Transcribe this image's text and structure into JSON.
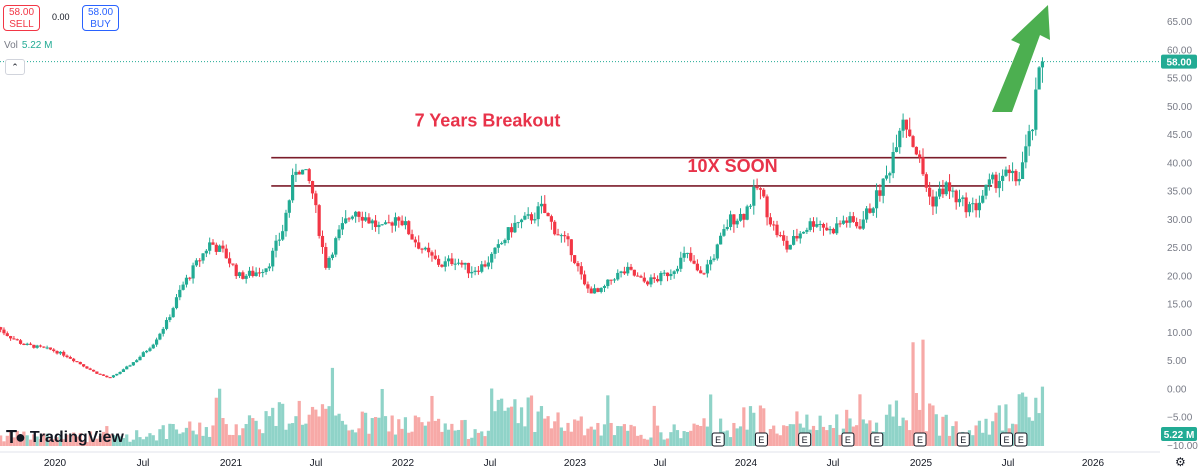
{
  "trade": {
    "sell_price": "58.00",
    "sell_label": "SELL",
    "spread": "0.00",
    "buy_price": "58.00",
    "buy_label": "BUY"
  },
  "volume_legend": {
    "label": "Vol",
    "value": "5.22 M"
  },
  "logo_text": "TradingView",
  "colors": {
    "up": "#22ab94",
    "down": "#f23645",
    "up_volume": "#8fd3c8",
    "down_volume": "#f7a9a7",
    "annotation": "#e8334a",
    "level_line": "#7b1c2a",
    "arrow": "#4caf50"
  },
  "chart_data": {
    "type": "candlestick",
    "yaxis": {
      "min": -10,
      "max": 65,
      "ticks": [
        65,
        60,
        55,
        50,
        45,
        40,
        35,
        30,
        25,
        20,
        15,
        10,
        5,
        0,
        -5,
        -10
      ]
    },
    "xaxis": {
      "labels": [
        "2020",
        "Jul",
        "2021",
        "Jul",
        "2022",
        "Jul",
        "2023",
        "Jul",
        "2024",
        "Jul",
        "2025",
        "Jul",
        "2026"
      ]
    },
    "last_price": 58.0,
    "last_price_label": "58.00",
    "volume_label": "5.22 M",
    "annotations": [
      {
        "text": "7 Years Breakout",
        "x": "2022-07",
        "y": 46.5
      },
      {
        "text": "10X SOON",
        "x": "2023-12",
        "y": 38.5
      }
    ],
    "levels": [
      {
        "value": 41.0,
        "from": "2021-04",
        "to": "2025-07"
      },
      {
        "value": 36.0,
        "from": "2021-04",
        "to": "2025-06"
      }
    ],
    "earnings_markers": {
      "label": "E",
      "dates": [
        "2023-11",
        "2024-02",
        "2024-05",
        "2024-08",
        "2024-10",
        "2025-01",
        "2025-04",
        "2025-07",
        "2025-08"
      ]
    },
    "price_path": [
      [
        "2019-09",
        11.5
      ],
      [
        "2019-10",
        9.5
      ],
      [
        "2019-11",
        8.0
      ],
      [
        "2019-12",
        7.5
      ],
      [
        "2020-01",
        7.0
      ],
      [
        "2020-02",
        6.0
      ],
      [
        "2020-03",
        4.5
      ],
      [
        "2020-04",
        3.0
      ],
      [
        "2020-05",
        2.0
      ],
      [
        "2020-06",
        3.5
      ],
      [
        "2020-07",
        5.5
      ],
      [
        "2020-08",
        8.0
      ],
      [
        "2020-09",
        12.0
      ],
      [
        "2020-10",
        18.0
      ],
      [
        "2020-11",
        22.0
      ],
      [
        "2020-12",
        26.0
      ],
      [
        "2021-01",
        24.0
      ],
      [
        "2021-02",
        20.0
      ],
      [
        "2021-03",
        20.5
      ],
      [
        "2021-04",
        22.0
      ],
      [
        "2021-05",
        28.0
      ],
      [
        "2021-06",
        40.0
      ],
      [
        "2021-07",
        36.0
      ],
      [
        "2021-08",
        22.0
      ],
      [
        "2021-09",
        28.0
      ],
      [
        "2021-10",
        32.0
      ],
      [
        "2021-11",
        30.0
      ],
      [
        "2021-12",
        28.0
      ],
      [
        "2022-01",
        31.0
      ],
      [
        "2022-02",
        27.0
      ],
      [
        "2022-03",
        24.0
      ],
      [
        "2022-04",
        22.0
      ],
      [
        "2022-05",
        23.0
      ],
      [
        "2022-06",
        21.0
      ],
      [
        "2022-07",
        22.0
      ],
      [
        "2022-08",
        25.0
      ],
      [
        "2022-09",
        29.0
      ],
      [
        "2022-10",
        30.0
      ],
      [
        "2022-11",
        32.0
      ],
      [
        "2022-12",
        28.0
      ],
      [
        "2023-01",
        25.0
      ],
      [
        "2023-02",
        18.0
      ],
      [
        "2023-03",
        17.0
      ],
      [
        "2023-04",
        20.0
      ],
      [
        "2023-05",
        21.0
      ],
      [
        "2023-06",
        19.0
      ],
      [
        "2023-07",
        19.5
      ],
      [
        "2023-08",
        21.0
      ],
      [
        "2023-09",
        24.0
      ],
      [
        "2023-10",
        20.0
      ],
      [
        "2023-11",
        24.0
      ],
      [
        "2023-12",
        30.0
      ],
      [
        "2024-01",
        31.0
      ],
      [
        "2024-02",
        36.0
      ],
      [
        "2024-03",
        29.0
      ],
      [
        "2024-04",
        25.0
      ],
      [
        "2024-05",
        28.0
      ],
      [
        "2024-06",
        30.0
      ],
      [
        "2024-07",
        28.0
      ],
      [
        "2024-08",
        30.0
      ],
      [
        "2024-09",
        29.0
      ],
      [
        "2024-10",
        33.0
      ],
      [
        "2024-11",
        38.0
      ],
      [
        "2024-12",
        49.0
      ],
      [
        "2025-01",
        42.0
      ],
      [
        "2025-02",
        33.0
      ],
      [
        "2025-03",
        36.0
      ],
      [
        "2025-04",
        33.0
      ],
      [
        "2025-05",
        32.0
      ],
      [
        "2025-06",
        36.0
      ],
      [
        "2025-07",
        38.0
      ],
      [
        "2025-08",
        37.0
      ],
      [
        "2025-09",
        46.0
      ],
      [
        "2025-09-20",
        58.0
      ]
    ],
    "volume_path": [
      [
        "2019-09",
        3
      ],
      [
        "2020-01",
        3
      ],
      [
        "2020-06",
        3
      ],
      [
        "2020-10",
        5
      ],
      [
        "2021-01",
        6
      ],
      [
        "2021-06",
        11
      ],
      [
        "2021-09",
        7
      ],
      [
        "2022-01",
        7
      ],
      [
        "2022-06",
        5
      ],
      [
        "2022-09",
        13
      ],
      [
        "2022-12",
        7
      ],
      [
        "2023-03",
        5
      ],
      [
        "2023-07",
        4
      ],
      [
        "2023-11",
        6
      ],
      [
        "2024-02",
        9
      ],
      [
        "2024-06",
        6
      ],
      [
        "2024-10",
        7
      ],
      [
        "2024-12",
        12
      ],
      [
        "2025-03",
        7
      ],
      [
        "2025-07",
        9
      ],
      [
        "2025-09-20",
        14
      ]
    ]
  }
}
